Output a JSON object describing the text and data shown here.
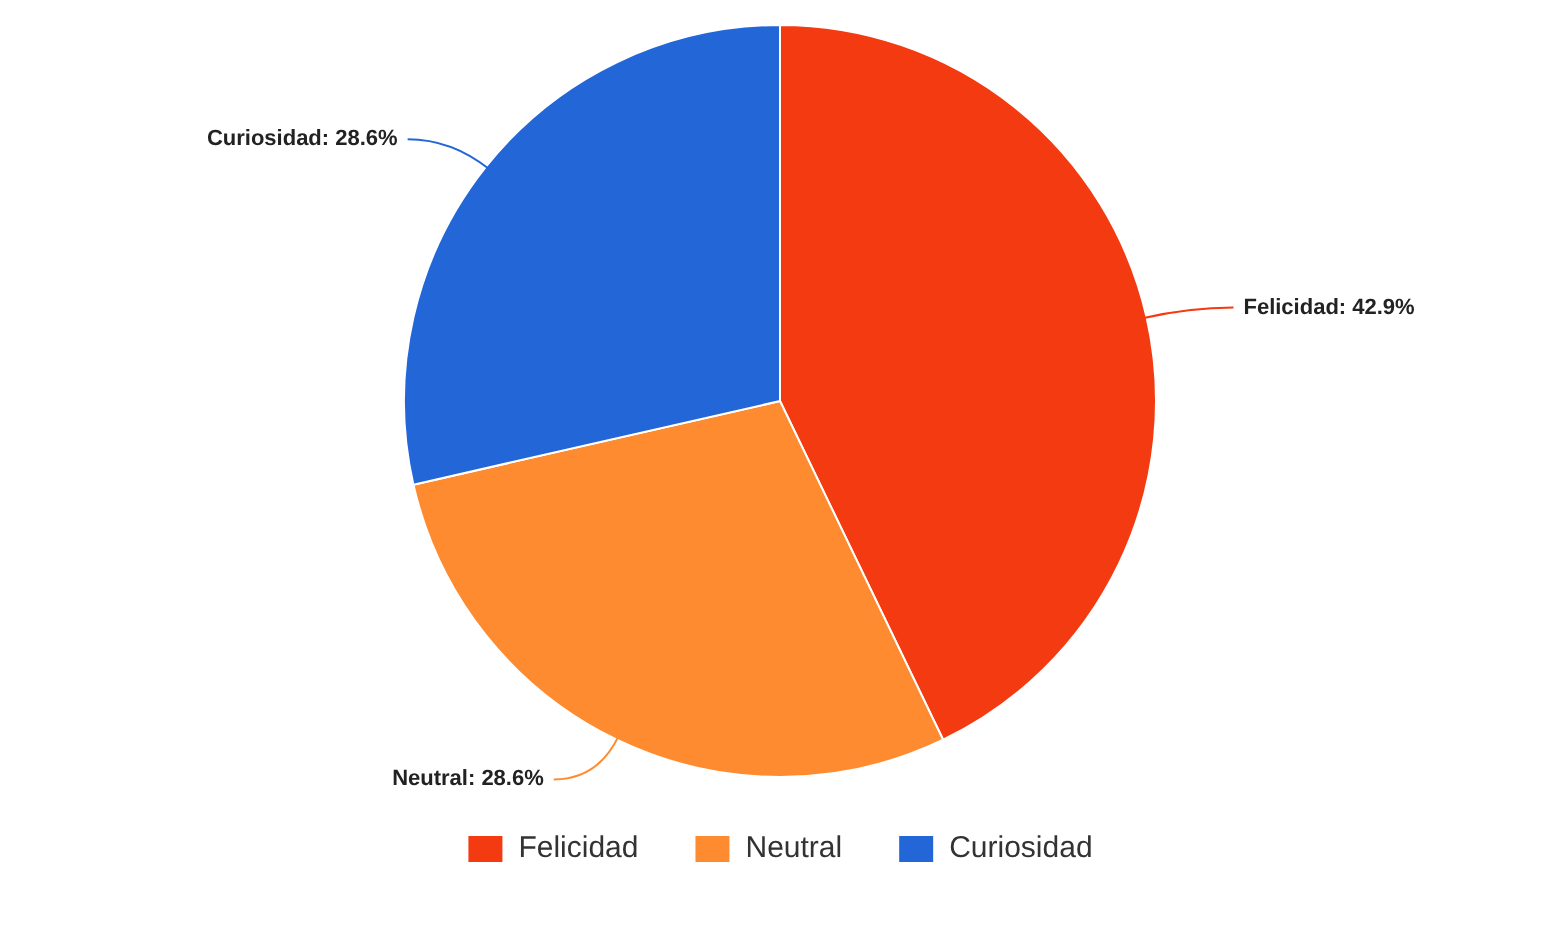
{
  "chart_data": {
    "type": "pie",
    "categories": [
      "Felicidad",
      "Neutral",
      "Curiosidad"
    ],
    "values": [
      42.9,
      28.6,
      28.6
    ],
    "colors": [
      "#f43a10",
      "#fe8b2f",
      "#2266d8"
    ],
    "value_labels": [
      "Felicidad: 42.9%",
      "Neutral: 28.6%",
      "Curiosidad: 28.6%"
    ],
    "legend": "bottom"
  }
}
